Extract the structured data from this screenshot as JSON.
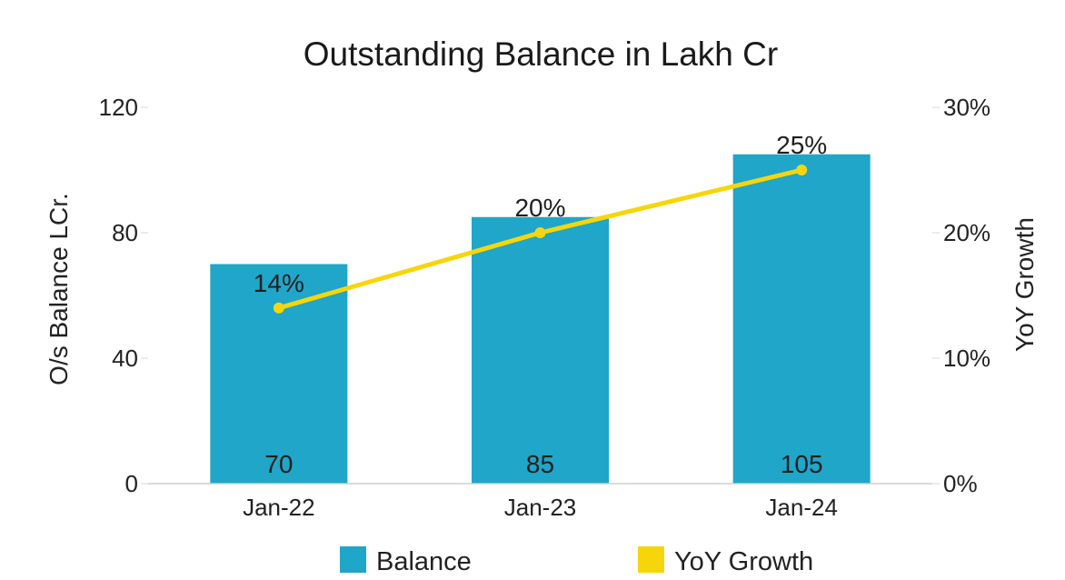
{
  "chart_data": {
    "type": "bar",
    "title": "Outstanding Balance in Lakh Cr",
    "categories": [
      "Jan-22",
      "Jan-23",
      "Jan-24"
    ],
    "series": [
      {
        "name": "Balance",
        "type": "bar",
        "axis": "left",
        "values": [
          70,
          85,
          105
        ],
        "labels": [
          "70",
          "85",
          "105"
        ],
        "color": "#1fa6c8"
      },
      {
        "name": "YoY Growth",
        "type": "line",
        "axis": "right",
        "values": [
          14,
          20,
          25
        ],
        "labels": [
          "14%",
          "20%",
          "25%"
        ],
        "color": "#f6d60b"
      }
    ],
    "y_left": {
      "label": "O/s Balance LCr.",
      "ylim": [
        0,
        120
      ],
      "ticks": [
        0,
        40,
        80,
        120
      ],
      "tick_labels": [
        "0",
        "40",
        "80",
        "120"
      ]
    },
    "y_right": {
      "label": "YoY Growth",
      "ylim": [
        0,
        30
      ],
      "ticks": [
        0,
        10,
        20,
        30
      ],
      "tick_labels": [
        "0%",
        "10%",
        "20%",
        "30%"
      ]
    },
    "grid": false,
    "legend": {
      "position": "bottom",
      "items": [
        "Balance",
        "YoY Growth"
      ]
    }
  }
}
